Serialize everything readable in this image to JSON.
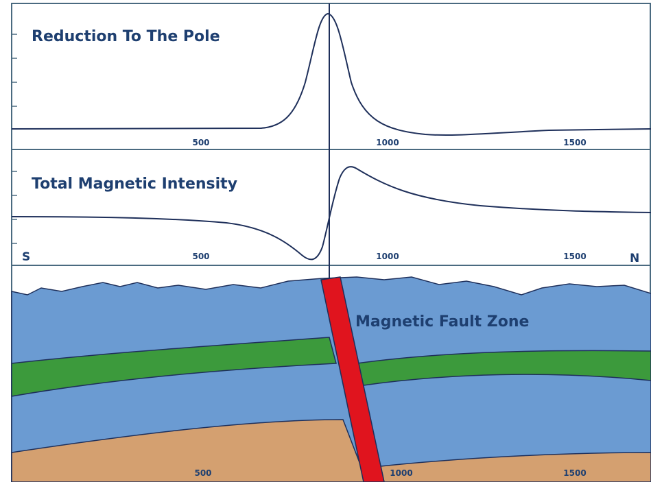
{
  "panels": [
    {
      "title": "Reduction To The Pole",
      "ticks": [
        "500",
        "1000",
        "1500"
      ]
    },
    {
      "title": "Total Magnetic Intensity",
      "ticks": [
        "500",
        "1000",
        "1500"
      ],
      "start": "S",
      "end": "N"
    }
  ],
  "section": {
    "label": "Magnetic Fault Zone",
    "ticks": [
      "500",
      "1000",
      "1500"
    ]
  }
}
